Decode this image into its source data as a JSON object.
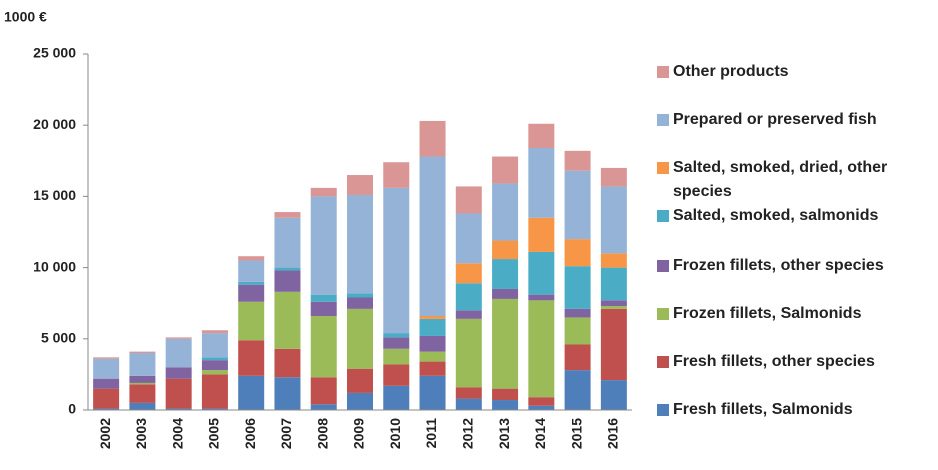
{
  "chart_data": {
    "type": "stacked_bar",
    "y_unit": "1000 €",
    "categories": [
      "2002",
      "2003",
      "2004",
      "2005",
      "2006",
      "2007",
      "2008",
      "2009",
      "2010",
      "2011",
      "2012",
      "2013",
      "2014",
      "2015",
      "2016"
    ],
    "ylim": [
      0,
      25000
    ],
    "yticks": [
      0,
      {
        "value": 5000,
        "label": "5 000"
      },
      {
        "value": 10000,
        "label": "10 000"
      },
      {
        "value": 15000,
        "label": "15 000"
      },
      {
        "value": 20000,
        "label": "20 000"
      },
      {
        "value": 25000,
        "label": "25 000"
      }
    ],
    "legend": "right",
    "series": [
      {
        "name": "Fresh fillets, Salmonids",
        "color": "#4f7fba",
        "values": [
          100,
          500,
          100,
          100,
          2400,
          2300,
          400,
          1200,
          1700,
          2400,
          800,
          700,
          300,
          2800,
          2100
        ]
      },
      {
        "name": "Fresh fillets, other species",
        "color": "#c0504d",
        "values": [
          1400,
          1300,
          2100,
          2400,
          2500,
          2000,
          1900,
          1700,
          1500,
          1000,
          800,
          800,
          600,
          1800,
          5000
        ]
      },
      {
        "name": "Frozen fillets, Salmonids",
        "color": "#9bbb59",
        "values": [
          0,
          100,
          0,
          300,
          2700,
          4000,
          4300,
          4200,
          1100,
          700,
          4800,
          6300,
          6800,
          1900,
          200
        ]
      },
      {
        "name": "Frozen fillets, other species",
        "color": "#8064a2",
        "values": [
          700,
          500,
          800,
          700,
          1200,
          1500,
          1000,
          800,
          800,
          1100,
          600,
          700,
          400,
          600,
          400
        ]
      },
      {
        "name": "Salted, smoked, salmonids",
        "color": "#4bacc6",
        "values": [
          0,
          0,
          0,
          200,
          200,
          200,
          500,
          300,
          300,
          1200,
          1900,
          2100,
          3000,
          3000,
          2300
        ]
      },
      {
        "name": "Salted, smoked, dried, other species",
        "color": "#f79646",
        "values": [
          0,
          0,
          0,
          0,
          0,
          0,
          0,
          0,
          0,
          200,
          1400,
          1300,
          2400,
          1900,
          1000
        ]
      },
      {
        "name": "Prepared or preserved fish",
        "color": "#95b3d7",
        "values": [
          1400,
          1600,
          2000,
          1700,
          1500,
          3500,
          6900,
          6900,
          10200,
          11200,
          3500,
          4000,
          4900,
          4800,
          4700
        ]
      },
      {
        "name": "Other products",
        "color": "#d99694",
        "values": [
          100,
          100,
          100,
          200,
          300,
          400,
          600,
          1400,
          1800,
          2500,
          1900,
          1900,
          1700,
          1400,
          1300
        ]
      }
    ]
  }
}
